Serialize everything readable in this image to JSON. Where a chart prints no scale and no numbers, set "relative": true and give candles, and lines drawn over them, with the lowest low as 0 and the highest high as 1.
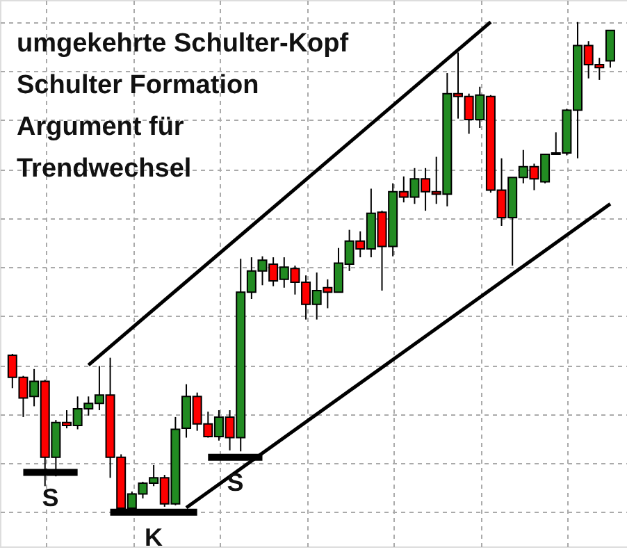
{
  "chart_data": {
    "type": "candlestick",
    "relative": true,
    "title": "umgekehrte Schulter-Kopf Schulter Formation Argument für Trendwechsel",
    "categories": [
      null,
      null,
      null,
      null,
      null,
      null,
      null,
      null,
      null,
      null,
      null,
      null,
      null,
      null,
      null,
      null,
      null,
      null,
      null,
      null,
      null,
      null,
      null,
      null,
      null,
      null,
      null,
      null,
      null,
      null,
      null,
      null,
      null,
      null,
      null,
      null,
      null,
      null,
      null,
      null,
      null,
      null,
      null,
      null,
      null,
      null,
      null,
      null,
      null,
      null,
      null,
      null,
      null,
      null,
      null,
      null
    ],
    "tick_labels": false,
    "grid": true,
    "ohlc": [
      [
        0.32,
        0.323,
        0.253,
        0.275
      ],
      [
        0.275,
        0.278,
        0.194,
        0.233
      ],
      [
        0.236,
        0.292,
        0.216,
        0.267
      ],
      [
        0.267,
        0.27,
        0.053,
        0.112
      ],
      [
        0.112,
        0.188,
        0.073,
        0.183
      ],
      [
        0.183,
        0.208,
        0.171,
        0.177
      ],
      [
        0.177,
        0.236,
        0.169,
        0.211
      ],
      [
        0.211,
        0.236,
        0.197,
        0.222
      ],
      [
        0.222,
        0.298,
        0.208,
        0.239
      ],
      [
        0.239,
        0.315,
        0.07,
        0.112
      ],
      [
        0.112,
        0.118,
        0.0,
        0.008
      ],
      [
        0.008,
        0.042,
        0.0,
        0.037
      ],
      [
        0.037,
        0.062,
        0.028,
        0.059
      ],
      [
        0.059,
        0.096,
        0.053,
        0.07
      ],
      [
        0.07,
        0.076,
        0.011,
        0.017
      ],
      [
        0.017,
        0.194,
        0.014,
        0.169
      ],
      [
        0.171,
        0.261,
        0.152,
        0.236
      ],
      [
        0.236,
        0.244,
        0.166,
        0.18
      ],
      [
        0.18,
        0.205,
        0.152,
        0.154
      ],
      [
        0.154,
        0.208,
        0.146,
        0.194
      ],
      [
        0.194,
        0.208,
        0.126,
        0.152
      ],
      [
        0.152,
        0.517,
        0.124,
        0.449
      ],
      [
        0.449,
        0.52,
        0.435,
        0.492
      ],
      [
        0.492,
        0.522,
        0.463,
        0.514
      ],
      [
        0.506,
        0.52,
        0.461,
        0.472
      ],
      [
        0.475,
        0.52,
        0.458,
        0.5
      ],
      [
        0.497,
        0.503,
        0.444,
        0.469
      ],
      [
        0.469,
        0.483,
        0.393,
        0.424
      ],
      [
        0.424,
        0.489,
        0.393,
        0.452
      ],
      [
        0.458,
        0.475,
        0.416,
        0.449
      ],
      [
        0.449,
        0.539,
        0.449,
        0.508
      ],
      [
        0.506,
        0.576,
        0.492,
        0.553
      ],
      [
        0.553,
        0.573,
        0.52,
        0.537
      ],
      [
        0.537,
        0.66,
        0.52,
        0.61
      ],
      [
        0.612,
        0.615,
        0.452,
        0.542
      ],
      [
        0.542,
        0.671,
        0.522,
        0.654
      ],
      [
        0.654,
        0.685,
        0.632,
        0.643
      ],
      [
        0.643,
        0.702,
        0.629,
        0.68
      ],
      [
        0.68,
        0.702,
        0.615,
        0.654
      ],
      [
        0.654,
        0.725,
        0.629,
        0.649
      ],
      [
        0.649,
        0.896,
        0.624,
        0.854
      ],
      [
        0.854,
        0.938,
        0.803,
        0.848
      ],
      [
        0.848,
        0.854,
        0.772,
        0.801
      ],
      [
        0.801,
        0.868,
        0.784,
        0.851
      ],
      [
        0.848,
        0.851,
        0.652,
        0.657
      ],
      [
        0.657,
        0.722,
        0.584,
        0.601
      ],
      [
        0.601,
        0.683,
        0.503,
        0.683
      ],
      [
        0.683,
        0.739,
        0.671,
        0.705
      ],
      [
        0.705,
        0.711,
        0.657,
        0.68
      ],
      [
        0.674,
        0.73,
        0.671,
        0.73
      ],
      [
        0.73,
        0.775,
        0.73,
        0.733
      ],
      [
        0.733,
        0.823,
        0.728,
        0.82
      ],
      [
        0.82,
        1.0,
        0.722,
        0.952
      ],
      [
        0.952,
        0.961,
        0.885,
        0.913
      ],
      [
        0.913,
        0.927,
        0.882,
        0.907
      ],
      [
        0.921,
        0.983,
        0.907,
        0.983
      ]
    ],
    "colors": [
      "#ff0000",
      "#ff0000",
      "#228b22",
      "#ff0000",
      "#228b22",
      "#ff0000",
      "#228b22",
      "#228b22",
      "#228b22",
      "#ff0000",
      "#ff0000",
      "#228b22",
      "#228b22",
      "#228b22",
      "#ff0000",
      "#228b22",
      "#228b22",
      "#ff0000",
      "#ff0000",
      "#228b22",
      "#ff0000",
      "#228b22",
      "#228b22",
      "#228b22",
      "#ff0000",
      "#228b22",
      "#ff0000",
      "#ff0000",
      "#228b22",
      "#ff0000",
      "#228b22",
      "#228b22",
      "#ff0000",
      "#228b22",
      "#ff0000",
      "#228b22",
      "#ff0000",
      "#228b22",
      "#ff0000",
      "#ff0000",
      "#228b22",
      "#ff0000",
      "#ff0000",
      "#228b22",
      "#ff0000",
      "#ff0000",
      "#228b22",
      "#228b22",
      "#ff0000",
      "#228b22",
      "#228b22",
      "#228b22",
      "#228b22",
      "#ff0000",
      "#ff0000",
      "#228b22"
    ],
    "series": [
      {
        "type": "line",
        "color": "#000000",
        "values": [
          null,
          null,
          null,
          null,
          null,
          null,
          null,
          0.3,
          null,
          null,
          null,
          null,
          null,
          null,
          null,
          null,
          null,
          null,
          null,
          null,
          null,
          null,
          null,
          null,
          null,
          null,
          null,
          null,
          null,
          null,
          null,
          null,
          null,
          null,
          null,
          null,
          null,
          null,
          null,
          null,
          null,
          null,
          null,
          null,
          1.0,
          null,
          null,
          null,
          null,
          null,
          null,
          null,
          null,
          null,
          null,
          null
        ]
      },
      {
        "type": "line",
        "color": "#000000",
        "values": [
          null,
          null,
          null,
          null,
          null,
          null,
          null,
          null,
          null,
          null,
          null,
          null,
          null,
          null,
          null,
          null,
          0.009,
          null,
          null,
          null,
          null,
          null,
          null,
          null,
          null,
          null,
          null,
          null,
          null,
          null,
          null,
          null,
          null,
          null,
          null,
          null,
          null,
          null,
          null,
          null,
          null,
          null,
          null,
          null,
          null,
          null,
          null,
          null,
          null,
          null,
          null,
          null,
          null,
          null,
          null,
          0.629
        ]
      },
      {
        "type": "line",
        "color": "#000000",
        "values": [
          null,
          0.081,
          null,
          null,
          null,
          null,
          0.081,
          null,
          null,
          null,
          null,
          null,
          null,
          null,
          null,
          null,
          null,
          null,
          null,
          null,
          null,
          null,
          null,
          null,
          null,
          null,
          null,
          null,
          null,
          null,
          null,
          null,
          null,
          null,
          null,
          null,
          null,
          null,
          null,
          null,
          null,
          null,
          null,
          null,
          null,
          null,
          null,
          null,
          null,
          null,
          null,
          null,
          null,
          null,
          null,
          null
        ]
      },
      {
        "type": "line",
        "color": "#000000",
        "values": [
          null,
          null,
          null,
          null,
          null,
          null,
          null,
          null,
          null,
          0.0,
          null,
          null,
          null,
          null,
          null,
          null,
          null,
          0.0,
          null,
          null,
          null,
          null,
          null,
          null,
          null,
          null,
          null,
          null,
          null,
          null,
          null,
          null,
          null,
          null,
          null,
          null,
          null,
          null,
          null,
          null,
          null,
          null,
          null,
          null,
          null,
          null,
          null,
          null,
          null,
          null,
          null,
          null,
          null,
          null,
          null,
          null
        ]
      },
      {
        "type": "line",
        "color": "#000000",
        "values": [
          null,
          null,
          null,
          null,
          null,
          null,
          null,
          null,
          null,
          null,
          null,
          null,
          null,
          null,
          null,
          null,
          null,
          null,
          0.112,
          null,
          null,
          null,
          null,
          0.112,
          null,
          null,
          null,
          null,
          null,
          null,
          null,
          null,
          null,
          null,
          null,
          null,
          null,
          null,
          null,
          null,
          null,
          null,
          null,
          null,
          null,
          null,
          null,
          null,
          null,
          null,
          null,
          null,
          null,
          null,
          null,
          null
        ]
      }
    ],
    "annotations": [
      "S",
      "K",
      "S"
    ]
  }
}
